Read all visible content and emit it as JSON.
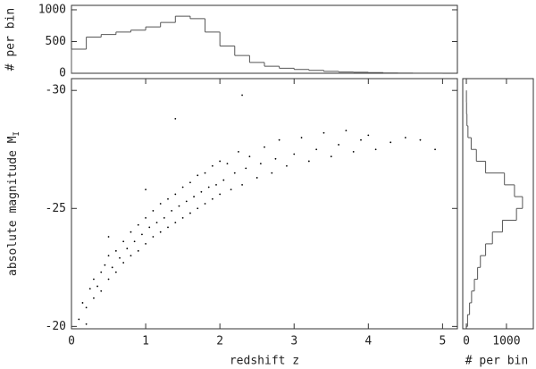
{
  "chart_data": [
    {
      "type": "histogram",
      "orientation": "vertical",
      "ylabel": "# per bin",
      "color": "#555555",
      "bins": [
        0.0,
        0.2,
        0.4,
        0.6,
        0.8,
        1.0,
        1.2,
        1.4,
        1.6,
        1.8,
        2.0,
        2.2,
        2.4,
        2.6,
        2.8,
        3.0,
        3.2,
        3.4,
        3.6,
        3.8,
        4.0,
        4.2,
        4.4,
        4.6,
        4.8,
        5.0
      ],
      "values": [
        380,
        570,
        610,
        650,
        680,
        730,
        800,
        900,
        860,
        650,
        430,
        280,
        170,
        110,
        80,
        60,
        45,
        30,
        20,
        15,
        10,
        5,
        3,
        2,
        1
      ],
      "xlim": [
        0,
        5.2
      ],
      "ylim": [
        0,
        1070
      ],
      "yticks": [
        0,
        500,
        1000
      ]
    },
    {
      "type": "scatter",
      "xlabel": "redshift z",
      "ylabel": "absolute magnitude M",
      "ylabel_subscript": "I",
      "color": "#000000",
      "x": [
        0.1,
        0.15,
        0.2,
        0.25,
        0.3,
        0.3,
        0.35,
        0.4,
        0.4,
        0.45,
        0.5,
        0.5,
        0.55,
        0.6,
        0.6,
        0.65,
        0.7,
        0.7,
        0.75,
        0.8,
        0.8,
        0.85,
        0.9,
        0.9,
        0.95,
        1.0,
        1.0,
        1.05,
        1.1,
        1.1,
        1.15,
        1.2,
        1.2,
        1.25,
        1.3,
        1.3,
        1.35,
        1.4,
        1.4,
        1.45,
        1.5,
        1.5,
        1.55,
        1.6,
        1.6,
        1.65,
        1.7,
        1.7,
        1.75,
        1.8,
        1.8,
        1.85,
        1.9,
        1.9,
        1.95,
        2.0,
        2.0,
        2.05,
        2.1,
        2.15,
        2.2,
        2.25,
        2.3,
        2.35,
        2.4,
        2.5,
        2.55,
        2.6,
        2.7,
        2.75,
        2.8,
        2.9,
        3.0,
        3.1,
        3.2,
        3.3,
        3.4,
        3.5,
        3.6,
        3.7,
        3.8,
        3.9,
        4.0,
        4.1,
        4.3,
        4.5,
        4.7,
        4.9,
        2.3,
        1.4,
        1.0,
        0.5,
        0.2
      ],
      "values": [
        -20.3,
        -21.0,
        -20.8,
        -21.6,
        -21.2,
        -22.0,
        -21.7,
        -22.3,
        -21.5,
        -22.6,
        -22.0,
        -23.0,
        -22.5,
        -23.2,
        -22.3,
        -22.9,
        -23.6,
        -22.7,
        -23.3,
        -24.0,
        -23.0,
        -23.6,
        -24.3,
        -23.2,
        -23.9,
        -24.6,
        -23.5,
        -24.2,
        -24.9,
        -23.8,
        -24.4,
        -25.2,
        -24.0,
        -24.6,
        -25.4,
        -24.2,
        -24.9,
        -25.6,
        -24.4,
        -25.1,
        -25.9,
        -24.6,
        -25.3,
        -26.1,
        -24.8,
        -25.5,
        -26.4,
        -25.0,
        -25.7,
        -26.5,
        -25.2,
        -25.9,
        -26.8,
        -25.4,
        -26.0,
        -27.0,
        -25.6,
        -26.2,
        -26.9,
        -25.8,
        -26.5,
        -27.4,
        -26.0,
        -26.7,
        -27.2,
        -26.3,
        -26.9,
        -27.6,
        -26.5,
        -27.1,
        -27.9,
        -26.8,
        -27.3,
        -28.0,
        -27.0,
        -27.5,
        -28.2,
        -27.2,
        -27.7,
        -28.3,
        -27.4,
        -27.9,
        -28.1,
        -27.5,
        -27.8,
        -28.0,
        -27.9,
        -27.5,
        -29.8,
        -28.8,
        -25.8,
        -23.8,
        -20.1
      ],
      "xlim": [
        0,
        5.2
      ],
      "ylim": [
        -19.9,
        -30.5
      ],
      "xticks": [
        0,
        1,
        2,
        3,
        4,
        5
      ],
      "yticks": [
        -30,
        -25,
        -20
      ]
    },
    {
      "type": "histogram",
      "orientation": "horizontal",
      "xlabel": "# per bin",
      "color": "#555555",
      "bins": [
        -20,
        -20.5,
        -21,
        -21.5,
        -22,
        -22.5,
        -23,
        -23.5,
        -24,
        -24.5,
        -25,
        -25.5,
        -26,
        -26.5,
        -27,
        -27.5,
        -28,
        -28.5,
        -29,
        -29.5,
        -30
      ],
      "values": [
        30,
        80,
        130,
        200,
        280,
        350,
        480,
        650,
        900,
        1250,
        1400,
        1200,
        950,
        480,
        250,
        120,
        40,
        15,
        5,
        2
      ],
      "xlim": [
        -90,
        1670
      ],
      "ylim": [
        -19.9,
        -30.5
      ],
      "xticks": [
        0,
        1000
      ]
    }
  ]
}
